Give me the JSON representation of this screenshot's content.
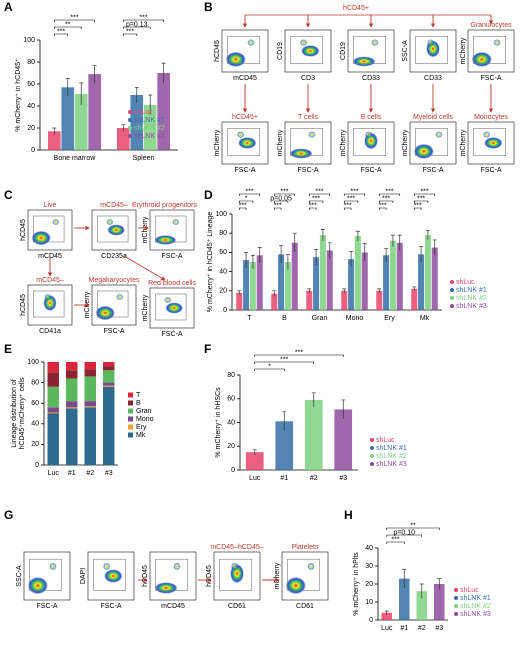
{
  "chart_data": [
    {
      "label": "A",
      "type": "bar",
      "ylabel": "% mCherry⁺ in hCD45⁺",
      "categories": [
        "Bone marrow",
        "Spleen"
      ],
      "series": [
        {
          "name": "shLuc",
          "color": "#e8436b",
          "values": [
            17,
            20
          ],
          "errors": [
            3,
            3
          ]
        },
        {
          "name": "shLNK #1",
          "color": "#3470a6",
          "values": [
            57,
            50
          ],
          "errors": [
            8,
            7
          ]
        },
        {
          "name": "shLNK #2",
          "color": "#7dd17f",
          "values": [
            51,
            41
          ],
          "errors": [
            10,
            9
          ]
        },
        {
          "name": "shLNK #3",
          "color": "#8f4c9f",
          "values": [
            69,
            70
          ],
          "errors": [
            8,
            9
          ]
        }
      ],
      "ylim": [
        0,
        100
      ],
      "yticks": [
        0,
        20,
        40,
        60,
        80,
        100
      ],
      "annotations": [
        "***",
        "**",
        "***",
        "***",
        "p=0.13",
        "***"
      ]
    },
    {
      "label": "D",
      "type": "bar",
      "ylabel": "% mCherry⁺ in hCD45⁺ Lineage",
      "categories": [
        "T",
        "B",
        "Gran",
        "Mono",
        "Ery",
        "Mk"
      ],
      "series": [
        {
          "name": "shLuc",
          "color": "#e8436b",
          "values": [
            18,
            17,
            20,
            20,
            20,
            22
          ],
          "errors": [
            2,
            3,
            2,
            2,
            2,
            2
          ]
        },
        {
          "name": "shLNK #1",
          "color": "#3470a6",
          "values": [
            52,
            58,
            55,
            53,
            57,
            58
          ],
          "errors": [
            8,
            9,
            8,
            8,
            7,
            8
          ]
        },
        {
          "name": "shLNK #2",
          "color": "#7dd17f",
          "values": [
            50,
            50,
            78,
            77,
            72,
            78
          ],
          "errors": [
            7,
            8,
            6,
            5,
            6,
            5
          ]
        },
        {
          "name": "shLNK #3",
          "color": "#8f4c9f",
          "values": [
            57,
            70,
            62,
            60,
            70,
            65
          ],
          "errors": [
            8,
            10,
            8,
            9,
            8,
            8
          ]
        }
      ],
      "ylim": [
        0,
        100
      ],
      "yticks": [
        0,
        20,
        40,
        60,
        80,
        100
      ],
      "annotations": [
        "***",
        "*",
        "***",
        "***",
        "p=0.05",
        "***",
        "***",
        "***",
        "***",
        "***",
        "***",
        "***",
        "***",
        "***",
        "***",
        "***",
        "***",
        "***"
      ]
    },
    {
      "label": "E",
      "type": "stacked_bar",
      "ylabel": [
        "Lineage distribution of",
        "hCD45⁺mCherry⁺ cells"
      ],
      "categories": [
        "Luc",
        "#1",
        "#2",
        "#3"
      ],
      "series": [
        {
          "name": "T",
          "color": "#d7263d",
          "values": [
            10,
            8,
            7,
            4
          ]
        },
        {
          "name": "B",
          "color": "#8b2232",
          "values": [
            14,
            8,
            7,
            4
          ]
        },
        {
          "name": "Gran",
          "color": "#5cb85c",
          "values": [
            20,
            22,
            24,
            12
          ]
        },
        {
          "name": "Mono",
          "color": "#7a4a8f",
          "values": [
            5,
            6,
            5,
            3
          ]
        },
        {
          "name": "Ery",
          "color": "#f0a030",
          "values": [
            1,
            1,
            1,
            1
          ]
        },
        {
          "name": "Mk",
          "color": "#2d6a8e",
          "values": [
            50,
            55,
            56,
            76
          ]
        }
      ],
      "ylim": [
        0,
        100
      ],
      "yticks": [
        0,
        20,
        40,
        60,
        80,
        100
      ]
    },
    {
      "label": "F",
      "type": "bar",
      "ylabel": "% mCherry⁺ in hHSCs",
      "categories": [
        "Luc",
        "#1",
        "#2",
        "#3"
      ],
      "values": [
        15,
        41,
        59,
        51
      ],
      "errors": [
        2,
        8,
        6,
        8
      ],
      "colors": [
        "#e8436b",
        "#3470a6",
        "#7dd17f",
        "#8f4c9f"
      ],
      "legend": [
        "shLuc",
        "shLNK #1",
        "shLNK #2",
        "shLNK #3"
      ],
      "ylim": [
        0,
        80
      ],
      "yticks": [
        0,
        20,
        40,
        60,
        80
      ],
      "annotations": [
        "***",
        "***",
        "*"
      ]
    },
    {
      "label": "H",
      "type": "bar",
      "ylabel": "% mCherry⁺ in hPlts",
      "categories": [
        "Luc",
        "#1",
        "#2",
        "#3"
      ],
      "values": [
        4,
        23,
        16,
        20
      ],
      "errors": [
        1,
        5,
        4,
        3
      ],
      "colors": [
        "#e8436b",
        "#3470a6",
        "#7dd17f",
        "#8f4c9f"
      ],
      "legend": [
        "shLuc",
        "shLNK #1",
        "shLNK #2",
        "shLNK #3"
      ],
      "ylim": [
        0,
        40
      ],
      "yticks": [
        0,
        10,
        20,
        30,
        40
      ],
      "annotations": [
        "**",
        "p=0.10",
        "***"
      ]
    }
  ],
  "flow_panels": [
    {
      "label": "B",
      "heading": "hCD45+",
      "plots": [
        {
          "x": "mCD45",
          "y": "hCD45"
        },
        {
          "x": "CD3",
          "y": "CD19"
        },
        {
          "x": "CD33",
          "y": "CD19"
        },
        {
          "x": "CD33",
          "y": "SSC-A"
        },
        {
          "title": "Granulocytes",
          "x": "FSC-A",
          "y": "mCherry"
        },
        {
          "title": "hCD45+",
          "x": "FSC-A",
          "y": "mCherry"
        },
        {
          "title": "T cells",
          "x": "FSC-A",
          "y": "mCherry"
        },
        {
          "title": "B cells",
          "x": "FSC-A",
          "y": "mCherry"
        },
        {
          "title": "Myeloid cells",
          "x": "FSC-A",
          "y": "mCherry"
        },
        {
          "title": "Monocytes",
          "x": "FSC-A",
          "y": "mCherry"
        }
      ]
    },
    {
      "label": "C",
      "plots": [
        {
          "title": "Live",
          "x": "mCD45",
          "y": "hCD45"
        },
        {
          "title": "mCD45–",
          "x": "CD235a"
        },
        {
          "title": "Erythroid progenitors",
          "x": "FSC-A",
          "y": "mCherry"
        },
        {
          "title": "mCD45–",
          "x": "CD41a",
          "y": "hCD45"
        },
        {
          "title": "Megakaryocytes",
          "x": "FSC-A",
          "y": "mCherry"
        },
        {
          "title": "Red blood cells",
          "x": "FSC-A",
          "y": "mCherry"
        }
      ]
    },
    {
      "label": "G",
      "plots": [
        {
          "x": "FSC-A",
          "y": "SSC-A"
        },
        {
          "x": "FSC-A",
          "y": "DAPI"
        },
        {
          "x": "mCD45",
          "y": "hCD45"
        },
        {
          "title": "mCD45–hCD45–",
          "x": "CD61",
          "y": "hCD45"
        },
        {
          "title": "Platelets",
          "x": "CD61",
          "y": "mCherry"
        }
      ]
    }
  ]
}
